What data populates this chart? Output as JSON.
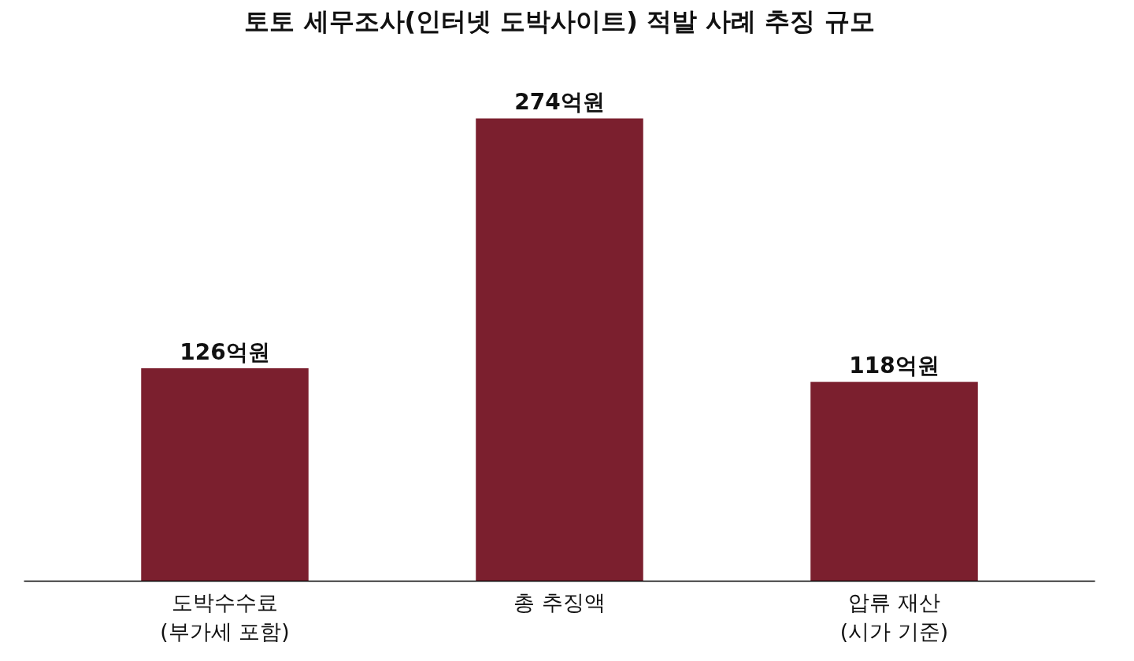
{
  "chart_data": {
    "type": "bar",
    "title": "토토 세무조사(인터넷 도박사이트) 적발 사례 추징 규모",
    "categories": [
      "도박수수료\n(부가세 포함)",
      "총 추징액",
      "압류 재산\n(시가 기준)"
    ],
    "values": [
      126,
      274,
      118
    ],
    "value_labels": [
      "126억원",
      "274억원",
      "118억원"
    ],
    "color": "#7b1f2e",
    "grid": false
  }
}
